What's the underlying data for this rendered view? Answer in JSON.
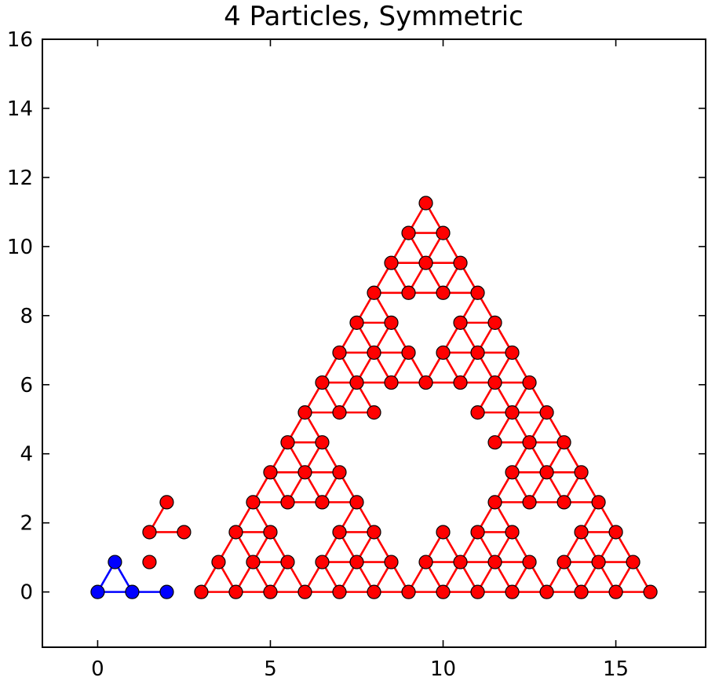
{
  "chart_data": {
    "type": "line",
    "title": "4 Particles, Symmetric",
    "xlabel": "",
    "ylabel": "",
    "xlim": [
      -1.6,
      17.6
    ],
    "ylim": [
      -1.6,
      16
    ],
    "xticks": [
      0,
      5,
      10,
      15
    ],
    "yticks": [
      0,
      2,
      4,
      6,
      8,
      10,
      12,
      14,
      16
    ],
    "grid": false,
    "series": [
      {
        "color": "#0000ff",
        "points": [
          [
            0,
            0
          ],
          [
            0.5,
            0.866
          ],
          [
            1,
            0
          ],
          [
            2,
            0
          ]
        ],
        "edges": [
          [
            0,
            1
          ],
          [
            1,
            2
          ],
          [
            0,
            2
          ],
          [
            2,
            3
          ]
        ]
      },
      {
        "color": "#ff0000",
        "sierpinski": {
          "origin": [
            3,
            0
          ],
          "side_units": 13,
          "unit": 1,
          "holes": [
            [
              2,
              7,
              13
            ],
            [
              2,
              1,
              7
            ],
            [
              7,
              1,
              7
            ],
            [
              2,
              7,
              7
            ],
            [
              2,
              1,
              4
            ],
            [
              4,
              1,
              4
            ],
            [
              2,
              3,
              4
            ],
            [
              7,
              1,
              4
            ],
            [
              9,
              1,
              4
            ],
            [
              7,
              3,
              4
            ],
            [
              2,
              7,
              4
            ],
            [
              4,
              7,
              4
            ],
            [
              2,
              9,
              4
            ],
            [
              2,
              1,
              1
            ],
            [
              3,
              1,
              1
            ],
            [
              2,
              2,
              1
            ],
            [
              4,
              1,
              1
            ],
            [
              5,
              1,
              1
            ],
            [
              4,
              2,
              1
            ],
            [
              2,
              3,
              1
            ],
            [
              3,
              3,
              1
            ],
            [
              2,
              4,
              1
            ],
            [
              7,
              1,
              1
            ],
            [
              8,
              1,
              1
            ],
            [
              7,
              2,
              1
            ],
            [
              9,
              1,
              1
            ],
            [
              10,
              1,
              1
            ],
            [
              9,
              2,
              1
            ],
            [
              7,
              3,
              1
            ],
            [
              8,
              3,
              1
            ],
            [
              7,
              4,
              1
            ],
            [
              2,
              7,
              1
            ],
            [
              3,
              7,
              1
            ],
            [
              2,
              8,
              1
            ],
            [
              4,
              7,
              1
            ],
            [
              5,
              7,
              1
            ],
            [
              4,
              8,
              1
            ],
            [
              2,
              9,
              1
            ],
            [
              3,
              9,
              1
            ],
            [
              2,
              10,
              1
            ]
          ],
          "missing_edges": [
            [
              [
                0,
                1
              ],
              [
                1,
                1
              ]
            ]
          ]
        },
        "extra_points": [
          [
            1.5,
            1.732
          ],
          [
            1.5,
            0.866
          ]
        ],
        "extra_edges": [
          [
            [
              1.5,
              1.732
            ],
            [
              2.5,
              1.732
            ]
          ],
          [
            [
              1.5,
              1.732
            ],
            [
              2,
              2.598
            ]
          ]
        ]
      }
    ]
  }
}
